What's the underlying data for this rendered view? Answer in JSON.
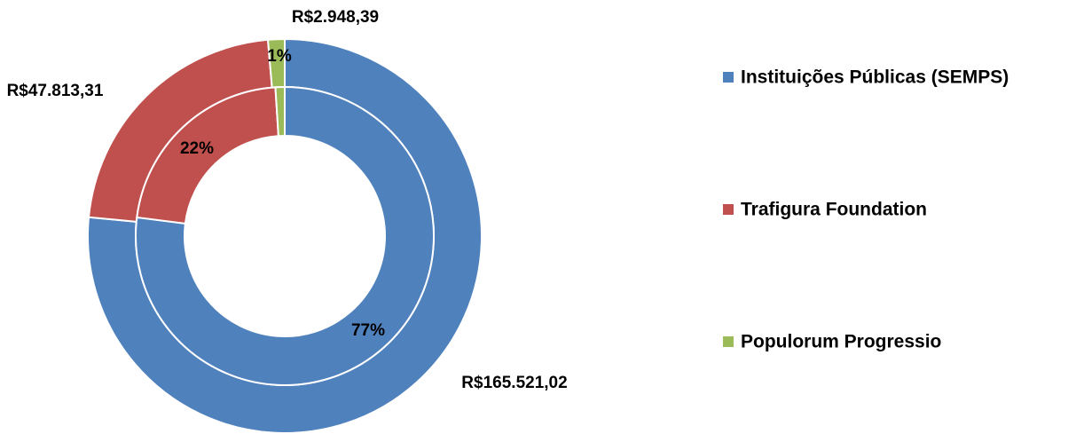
{
  "chart_data": {
    "type": "donut",
    "categories": [
      "Instituições Públicas (SEMPS)",
      "Trafigura Foundation",
      "Populorum Progressio"
    ],
    "colors": [
      "#4f81bd",
      "#c0504d",
      "#9bbb59"
    ],
    "series": [
      {
        "values": [
          165521.02,
          47813.31,
          2948.39
        ],
        "value_labels": [
          "R$165.521,02",
          "R$47.813,31",
          "R$2.948,39"
        ]
      },
      {
        "values": [
          77,
          22,
          1
        ],
        "value_labels": [
          "77%",
          "22%",
          "1%"
        ]
      }
    ]
  }
}
